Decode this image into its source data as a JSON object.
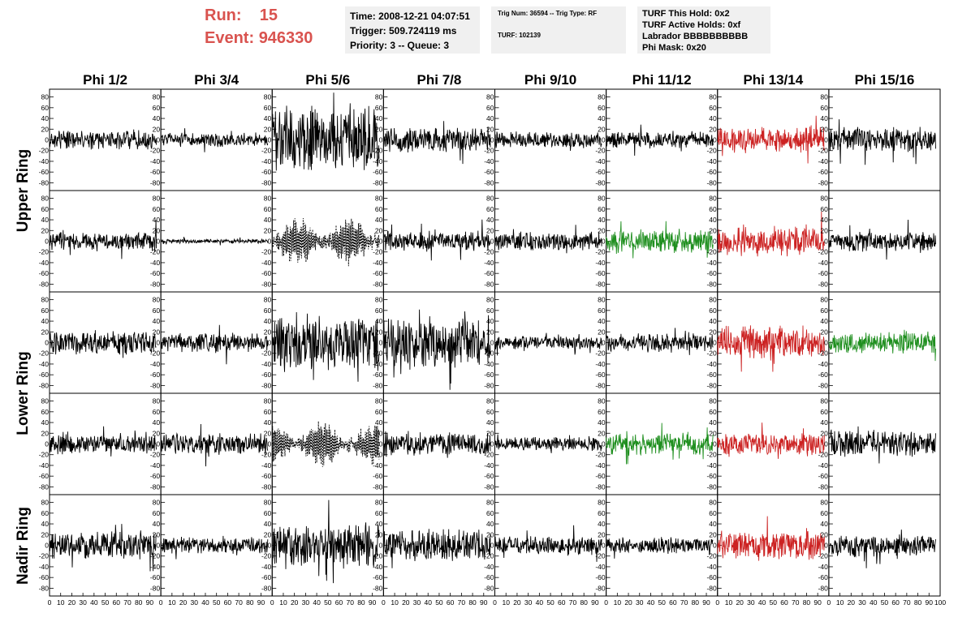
{
  "header": {
    "run_label": "Run:",
    "run_value": "15",
    "event_label": "Event:",
    "event_value": "946330"
  },
  "info_time": {
    "time": "Time: 2008-12-21 04:07:51",
    "trigger": "Trigger: 509.724119 ms",
    "priority": "Priority: 3 -- Queue: 3"
  },
  "info_trig": {
    "trig": "Trig Num: 36594 -- Trig Type: RF",
    "turf": "TURF: 102139"
  },
  "info_turf": {
    "hold": "TURF This Hold: 0x2",
    "active": "TURF Active Holds: 0xf",
    "labrador": "Labrador BBBBBBBBBB",
    "phimask": "Phi Mask: 0x20"
  },
  "colors": {
    "normal": "#000000",
    "triggered": "#cc2222",
    "masked": "#1f8f1f",
    "run_text": "#d9534f",
    "panel_bg": "#f0f0f0"
  },
  "chart_data": {
    "type": "line",
    "columns": [
      "Phi 1/2",
      "Phi 3/4",
      "Phi 5/6",
      "Phi 7/8",
      "Phi 9/10",
      "Phi 11/12",
      "Phi 13/14",
      "Phi 15/16"
    ],
    "rows": [
      "Upper Ring",
      "",
      "Lower Ring",
      "",
      "Nadir Ring"
    ],
    "ring_labels": [
      {
        "text": "Upper Ring",
        "rows": [
          0,
          1
        ]
      },
      {
        "text": "Lower Ring",
        "rows": [
          2,
          3
        ]
      },
      {
        "text": "Nadir Ring",
        "rows": [
          4,
          4
        ]
      }
    ],
    "xlim": [
      0,
      100
    ],
    "ylim": [
      -90,
      90
    ],
    "y_ticks": [
      -80,
      -60,
      -40,
      -20,
      0,
      20,
      40,
      60,
      80
    ],
    "x_tick_labels": [
      "0",
      "10",
      "20",
      "30",
      "40",
      "50",
      "60",
      "70",
      "80",
      "90",
      "100"
    ],
    "waveform_samples": 260,
    "panels": [
      [
        {
          "amp": 14,
          "style": "normal",
          "seed": 1
        },
        {
          "amp": 10,
          "style": "normal",
          "seed": 2
        },
        {
          "amp": 48,
          "style": "normal",
          "seed": 3
        },
        {
          "amp": 18,
          "style": "normal",
          "seed": 4
        },
        {
          "amp": 12,
          "style": "normal",
          "seed": 5
        },
        {
          "amp": 12,
          "style": "normal",
          "seed": 6
        },
        {
          "amp": 18,
          "style": "triggered",
          "seed": 7
        },
        {
          "amp": 18,
          "style": "normal",
          "seed": 8
        }
      ],
      [
        {
          "amp": 14,
          "style": "normal",
          "seed": 9
        },
        {
          "amp": 3,
          "style": "normal",
          "seed": 10
        },
        {
          "amp": 38,
          "style": "dashed",
          "seed": 11
        },
        {
          "amp": 14,
          "style": "normal",
          "seed": 12
        },
        {
          "amp": 14,
          "style": "normal",
          "seed": 13
        },
        {
          "amp": 18,
          "style": "masked",
          "seed": 14
        },
        {
          "amp": 22,
          "style": "triggered",
          "seed": 15
        },
        {
          "amp": 14,
          "style": "normal",
          "seed": 16
        }
      ],
      [
        {
          "amp": 18,
          "style": "normal",
          "seed": 17
        },
        {
          "amp": 14,
          "style": "normal",
          "seed": 18
        },
        {
          "amp": 40,
          "style": "normal",
          "seed": 19
        },
        {
          "amp": 38,
          "style": "normal",
          "seed": 20
        },
        {
          "amp": 10,
          "style": "normal",
          "seed": 21
        },
        {
          "amp": 14,
          "style": "normal",
          "seed": 22
        },
        {
          "amp": 24,
          "style": "triggered",
          "seed": 23
        },
        {
          "amp": 16,
          "style": "masked",
          "seed": 24
        }
      ],
      [
        {
          "amp": 14,
          "style": "normal",
          "seed": 25
        },
        {
          "amp": 16,
          "style": "normal",
          "seed": 26
        },
        {
          "amp": 36,
          "style": "dashed",
          "seed": 27
        },
        {
          "amp": 16,
          "style": "normal",
          "seed": 28
        },
        {
          "amp": 10,
          "style": "normal",
          "seed": 29
        },
        {
          "amp": 16,
          "style": "masked",
          "seed": 30
        },
        {
          "amp": 16,
          "style": "triggered",
          "seed": 31
        },
        {
          "amp": 20,
          "style": "normal",
          "seed": 32
        }
      ],
      [
        {
          "amp": 20,
          "style": "normal",
          "seed": 33
        },
        {
          "amp": 12,
          "style": "normal",
          "seed": 34
        },
        {
          "amp": 32,
          "style": "normal",
          "seed": 35
        },
        {
          "amp": 24,
          "style": "normal",
          "seed": 36
        },
        {
          "amp": 14,
          "style": "normal",
          "seed": 37
        },
        {
          "amp": 12,
          "style": "normal",
          "seed": 38
        },
        {
          "amp": 22,
          "style": "triggered",
          "seed": 39
        },
        {
          "amp": 16,
          "style": "normal",
          "seed": 40
        }
      ]
    ]
  }
}
